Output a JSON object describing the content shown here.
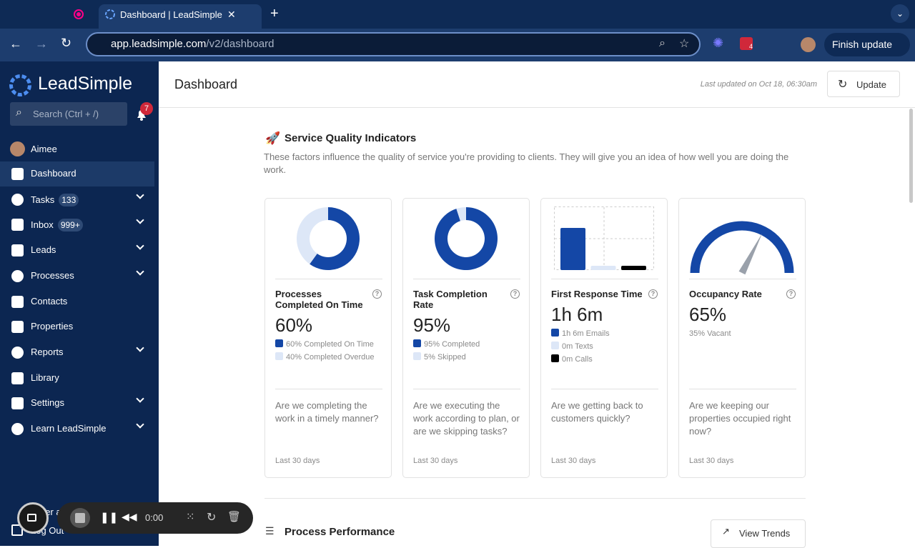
{
  "browser": {
    "tab_title": "Dashboard | LeadSimple",
    "url_host": "app.leadsimple.com",
    "url_path": "/v2/dashboard",
    "update_button": "Finish update",
    "extension_badge": 4
  },
  "sidebar": {
    "logo": "LeadSimple",
    "search_placeholder": "Search (Ctrl + /)",
    "notification_count": 7,
    "user": "Aimee",
    "nav": [
      {
        "label": "Dashboard",
        "active": true
      },
      {
        "label": "Tasks",
        "badge": 133,
        "expandable": true
      },
      {
        "label": "Inbox",
        "badge": "999+",
        "expandable": true
      },
      {
        "label": "Leads",
        "expandable": true
      },
      {
        "label": "Processes",
        "expandable": true
      },
      {
        "label": "Contacts"
      },
      {
        "label": "Properties"
      },
      {
        "label": "Reports",
        "expandable": true
      },
      {
        "label": "Library"
      },
      {
        "label": "Settings",
        "expandable": true
      },
      {
        "label": "Learn LeadSimple",
        "expandable": true
      }
    ],
    "footer": [
      "Refer a",
      "Log Out"
    ]
  },
  "recorder": {
    "time": "0:00"
  },
  "header": {
    "title": "Dashboard",
    "last_updated": "Last updated on Oct 18, 06:30am",
    "update_button": "Update"
  },
  "section": {
    "title": "Service Quality Indicators",
    "description": "These factors influence the quality of service you're providing to clients. They will give you an idea of how well you are doing the work."
  },
  "cards": [
    {
      "title": "Processes Completed On Time",
      "value": "60%",
      "chart": {
        "type": "donut",
        "values": [
          60,
          40
        ],
        "colors": [
          "#1447a6",
          "#dde7f7"
        ]
      },
      "legend": [
        "60% Completed On Time",
        "40% Completed Overdue"
      ],
      "question": "Are we completing the work in a timely manner?",
      "period": "Last 30 days"
    },
    {
      "title": "Task Completion Rate",
      "value": "95%",
      "chart": {
        "type": "donut",
        "values": [
          95,
          5
        ],
        "colors": [
          "#1447a6",
          "#dde7f7"
        ]
      },
      "legend": [
        "95% Completed",
        "5% Skipped"
      ],
      "question": "Are we executing the work according to plan, or are we skipping tasks?",
      "period": "Last 30 days"
    },
    {
      "title": "First Response Time",
      "value": "1h 6m",
      "chart": {
        "type": "bar",
        "values": [
          66,
          0,
          0
        ],
        "colors": [
          "#1447a6",
          "#dde7f7",
          "#000000"
        ]
      },
      "legend": [
        "1h 6m Emails",
        "0m Texts",
        "0m Calls"
      ],
      "question": "Are we getting back to customers quickly?",
      "period": "Last 30 days"
    },
    {
      "title": "Occupancy Rate",
      "value": "65%",
      "chart": {
        "type": "gauge",
        "values": [
          65
        ],
        "colors": [
          "#1447a6"
        ]
      },
      "legend": [
        "35% Vacant"
      ],
      "question": "Are we keeping our properties occupied right now?",
      "period": "Last 30 days"
    }
  ],
  "next_section": {
    "title": "Process Performance",
    "button": "View Trends"
  }
}
